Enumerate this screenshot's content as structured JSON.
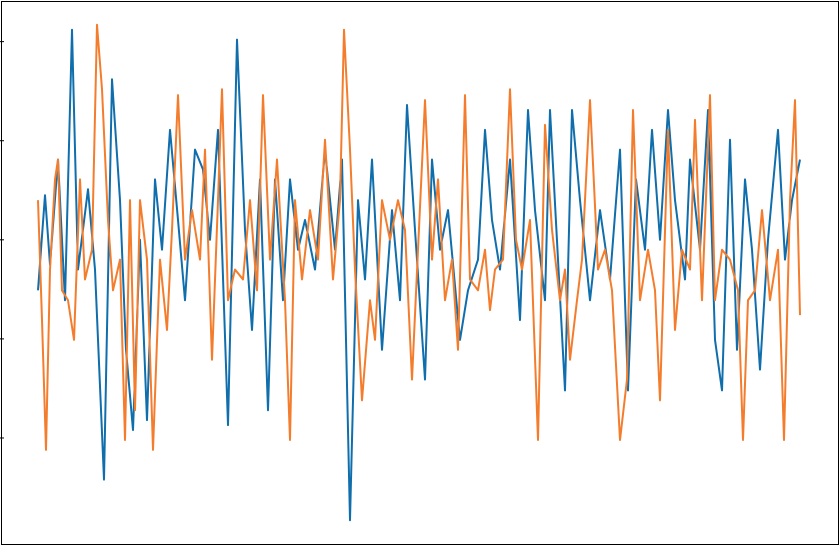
{
  "chart_data": {
    "type": "line",
    "xlim": [
      -36,
      800
    ],
    "ylim": [
      -3.07,
      2.4
    ],
    "yticks": [
      -2,
      -1,
      0,
      1,
      2
    ],
    "series": [
      {
        "color": "#0f6eab",
        "x": [
          0,
          7,
          12,
          20,
          27,
          34,
          40,
          50,
          57,
          66,
          74,
          82,
          88,
          95,
          102,
          109,
          117,
          124,
          132,
          140,
          147,
          157,
          165,
          172,
          180,
          190,
          199,
          207,
          214,
          222,
          230,
          237,
          245,
          252,
          260,
          267,
          277,
          287,
          297,
          304,
          312,
          320,
          327,
          334,
          344,
          354,
          362,
          369,
          377,
          387,
          394,
          402,
          410,
          422,
          430,
          440,
          447,
          454,
          462,
          472,
          482,
          490,
          497,
          507,
          512,
          520,
          527,
          534,
          542,
          552,
          562,
          572,
          582,
          590,
          598,
          607,
          614,
          622,
          630,
          637,
          647,
          652,
          662,
          670,
          677,
          684,
          692,
          699,
          707,
          714,
          722,
          730,
          740,
          747,
          754,
          762
        ],
        "values": [
          -0.51,
          0.45,
          -0.25,
          0.81,
          -0.61,
          2.12,
          -0.3,
          0.51,
          -0.3,
          -2.42,
          1.62,
          0.4,
          -1.11,
          -1.92,
          0,
          -1.82,
          0.61,
          -0.1,
          1.11,
          0.2,
          -0.61,
          0.91,
          0.71,
          0,
          1.11,
          -1.87,
          2.02,
          0.1,
          -0.91,
          0.61,
          -1.72,
          0.61,
          -0.61,
          0.61,
          -0.1,
          0.2,
          -0.3,
          0.91,
          -0.1,
          0.81,
          -2.83,
          0.4,
          -0.4,
          0.81,
          -1.11,
          0.3,
          -0.61,
          1.36,
          0.1,
          -1.41,
          0.81,
          -0.1,
          0.3,
          -1.01,
          -0.51,
          -0.2,
          1.11,
          0.2,
          -0.3,
          0.81,
          -0.81,
          1.31,
          0.3,
          -0.61,
          1.31,
          -0.2,
          -1.52,
          1.31,
          0.4,
          -0.61,
          0.3,
          -0.4,
          0.91,
          -1.52,
          0.61,
          -0.1,
          1.11,
          0,
          1.31,
          0.4,
          -0.4,
          0.81,
          -0.1,
          1.31,
          -1.01,
          -1.52,
          1.01,
          -1.11,
          0.61,
          -0.1,
          -1.31,
          0,
          1.11,
          -0.2,
          0.4,
          0.81
        ]
      },
      {
        "color": "#f47d2d",
        "x": [
          0,
          4,
          8,
          12,
          17,
          20,
          24,
          30,
          36,
          42,
          47,
          54,
          59,
          64,
          70,
          75,
          82,
          87,
          92,
          97,
          102,
          109,
          115,
          122,
          129,
          134,
          140,
          147,
          154,
          162,
          167,
          174,
          180,
          184,
          190,
          197,
          205,
          212,
          219,
          225,
          232,
          239,
          247,
          252,
          257,
          264,
          272,
          280,
          287,
          295,
          302,
          306,
          312,
          317,
          324,
          332,
          337,
          344,
          352,
          360,
          367,
          374,
          380,
          387,
          394,
          400,
          407,
          414,
          420,
          427,
          432,
          440,
          447,
          452,
          457,
          465,
          472,
          478,
          484,
          492,
          500,
          507,
          514,
          522,
          527,
          532,
          539,
          544,
          552,
          560,
          567,
          574,
          582,
          589,
          595,
          602,
          610,
          617,
          622,
          630,
          637,
          644,
          652,
          657,
          664,
          672,
          677,
          684,
          692,
          700,
          705,
          710,
          717,
          724,
          732,
          740,
          746,
          752,
          757,
          762
        ],
        "values": [
          0.4,
          -0.81,
          -2.12,
          -0.3,
          0.61,
          0.81,
          -0.51,
          -0.61,
          -1.01,
          0.61,
          -0.4,
          -0.1,
          2.17,
          1.52,
          0.2,
          -0.51,
          -0.2,
          -2.02,
          0.4,
          -1.72,
          0.4,
          -0.2,
          -2.12,
          -0.2,
          -0.91,
          0.1,
          1.46,
          -0.2,
          0.3,
          -0.2,
          0.91,
          -1.21,
          0.4,
          1.52,
          -0.61,
          -0.3,
          -0.4,
          0.4,
          -0.51,
          1.46,
          -0.2,
          0.81,
          -0.61,
          -2.02,
          0.4,
          -0.4,
          0.3,
          -0.2,
          1.01,
          -0.4,
          0.4,
          2.12,
          0.91,
          -0.3,
          -1.62,
          -0.61,
          -1.01,
          0.4,
          0,
          0.4,
          0.1,
          -1.41,
          -0.1,
          1.41,
          -0.2,
          0.61,
          -0.61,
          -0.2,
          -1.11,
          1.46,
          -0.4,
          -0.51,
          -0.1,
          -0.71,
          -0.3,
          -0.2,
          1.52,
          0,
          -0.3,
          0.2,
          -2.02,
          1.16,
          0.1,
          -0.61,
          -0.3,
          -1.21,
          -0.61,
          -0.2,
          1.41,
          -0.3,
          -0.1,
          -0.51,
          -2.02,
          -1.41,
          1.31,
          -0.61,
          -0.1,
          -0.51,
          -1.62,
          1.11,
          -0.91,
          -0.1,
          -0.3,
          1.21,
          -0.61,
          1.46,
          -0.61,
          -0.1,
          -0.2,
          -0.51,
          -2.02,
          -0.61,
          -0.51,
          0.3,
          -0.61,
          -0.1,
          -2.02,
          0.4,
          1.41,
          -0.76
        ]
      }
    ]
  }
}
